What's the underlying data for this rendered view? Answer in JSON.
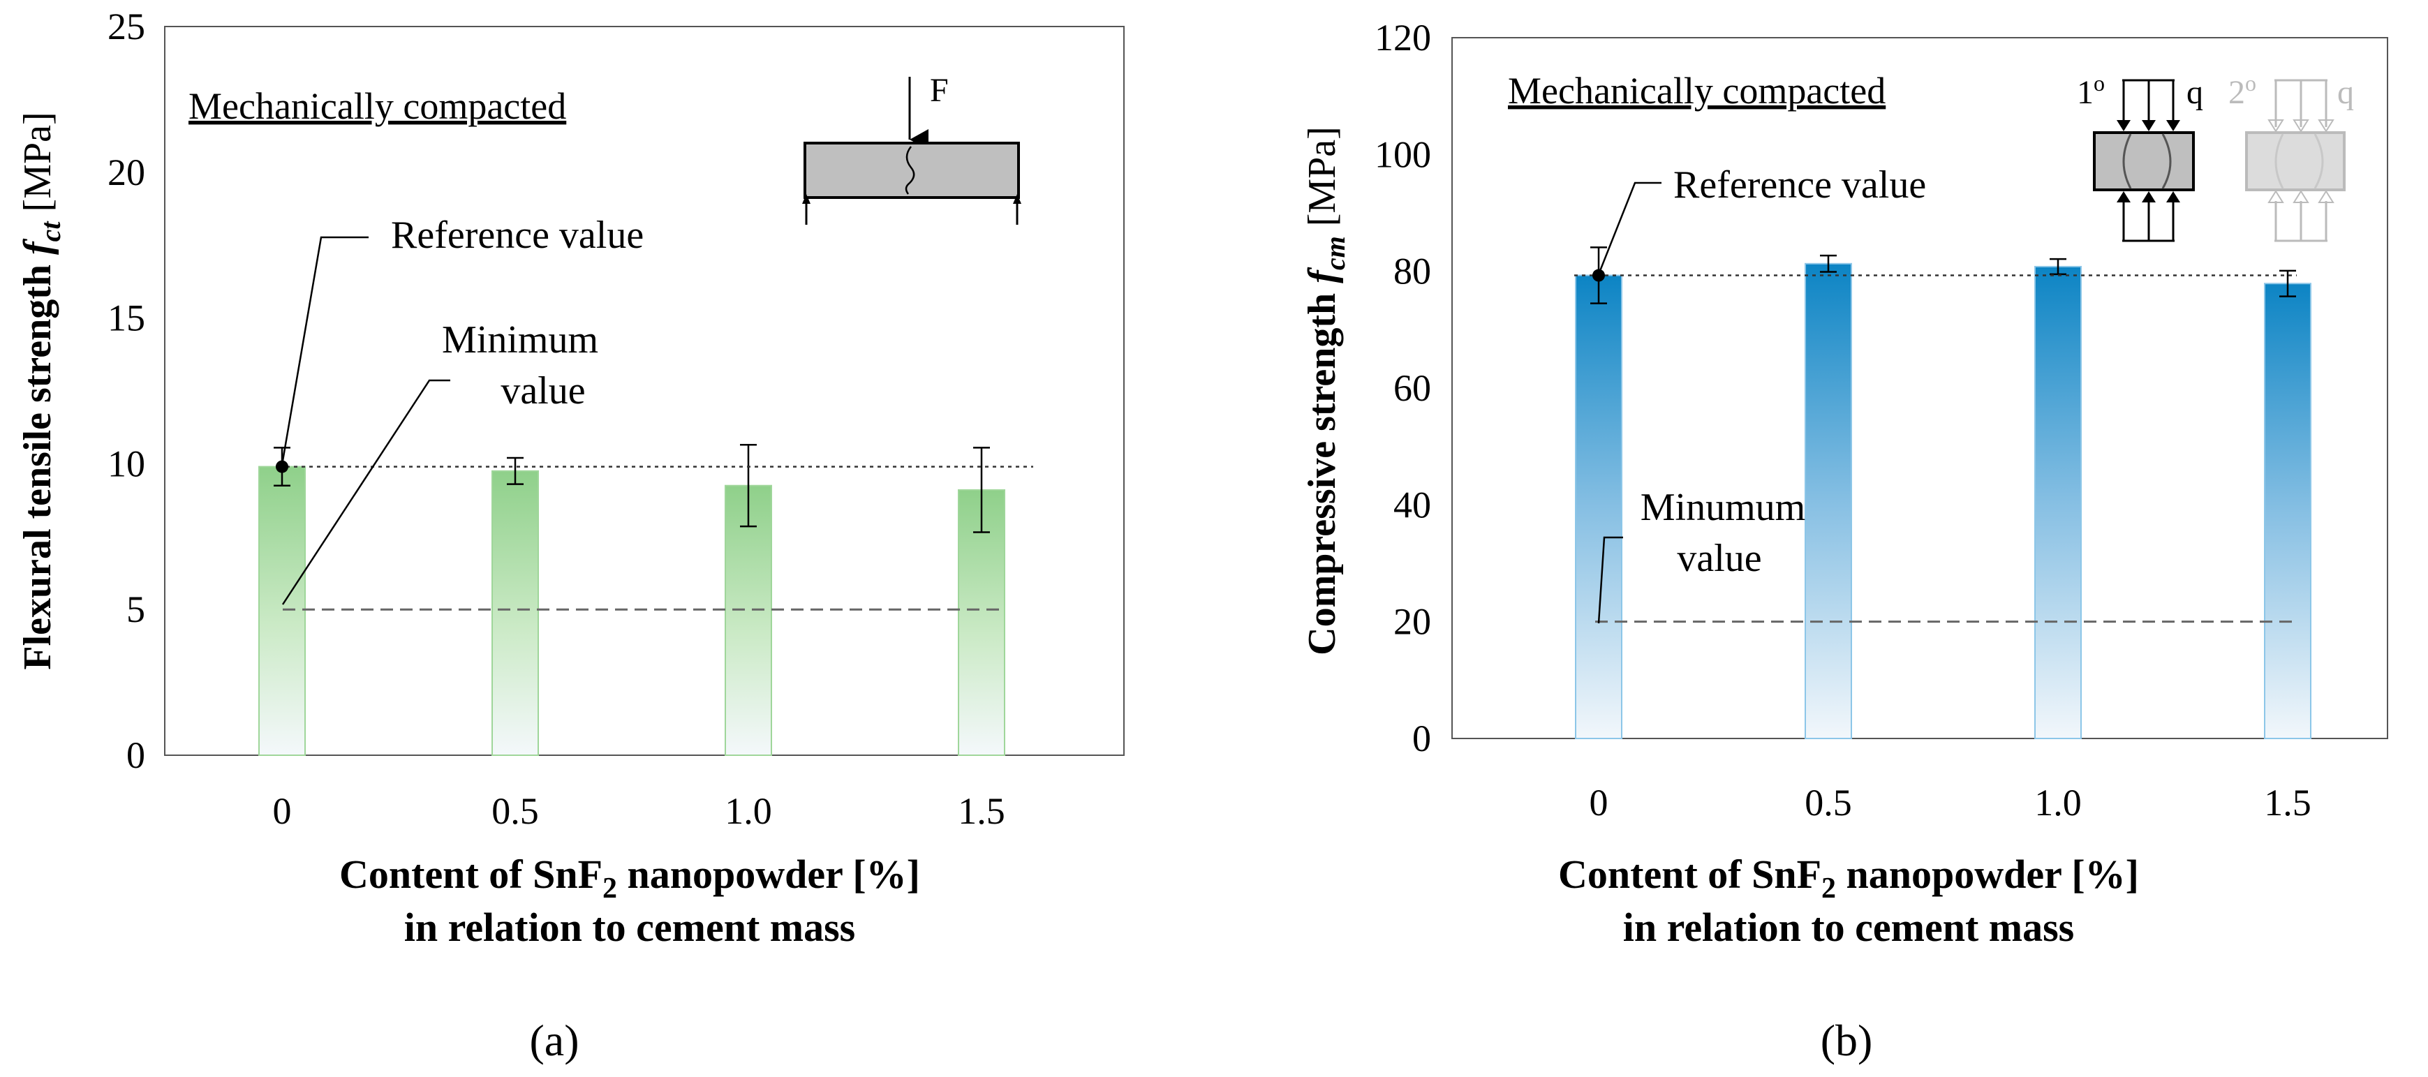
{
  "chart_data": [
    {
      "type": "bar",
      "panel_label": "(a)",
      "title": "Mechanically compacted",
      "ylabel_main": "Flexural tensile strength ",
      "ylabel_symbol": "f",
      "ylabel_subscript": "ct",
      "ylabel_unit": " [MPa]",
      "xlabel_line1_pre": "Content of SnF",
      "xlabel_line1_sub": "2",
      "xlabel_line1_post": " nanopowder [%]",
      "xlabel_line2": "in relation to cement mass",
      "categories": [
        "0",
        "0.5",
        "1.0",
        "1.5"
      ],
      "values": [
        9.9,
        9.75,
        9.25,
        9.1
      ],
      "errors": [
        0.65,
        0.45,
        1.4,
        1.45
      ],
      "ylim": [
        0,
        25
      ],
      "yticks": [
        0,
        5,
        10,
        15,
        20,
        25
      ],
      "reference_value": 9.9,
      "minimum_value": 5,
      "annotations": {
        "reference": "Reference value",
        "minimum_line1": "Minimum",
        "minimum_line2": "value",
        "force": "F"
      },
      "color": "#8fd08a"
    },
    {
      "type": "bar",
      "panel_label": "(b)",
      "title": "Mechanically compacted",
      "ylabel_main": "Compressive strength ",
      "ylabel_symbol": "f",
      "ylabel_subscript": "cm",
      "ylabel_unit": " [MPa]",
      "xlabel_line1_pre": "Content of SnF",
      "xlabel_line1_sub": "2",
      "xlabel_line1_post": " nanopowder [%]",
      "xlabel_line2": "in relation to cement mass",
      "categories": [
        "0",
        "0.5",
        "1.0",
        "1.5"
      ],
      "values": [
        79.3,
        81.3,
        80.8,
        77.9
      ],
      "errors": [
        4.8,
        1.4,
        1.3,
        2.2
      ],
      "ylim": [
        0,
        120
      ],
      "yticks": [
        0,
        20,
        40,
        60,
        80,
        100,
        120
      ],
      "reference_value": 79.3,
      "minimum_value": 20,
      "annotations": {
        "reference": "Reference value",
        "minimum_line1": "Minumum",
        "minimum_line2": "value",
        "load_primary": "1",
        "load_primary_sup": "o",
        "load_secondary": "2",
        "load_secondary_sup": "o",
        "load_q": "q"
      },
      "color": "#1a8cc8"
    }
  ]
}
